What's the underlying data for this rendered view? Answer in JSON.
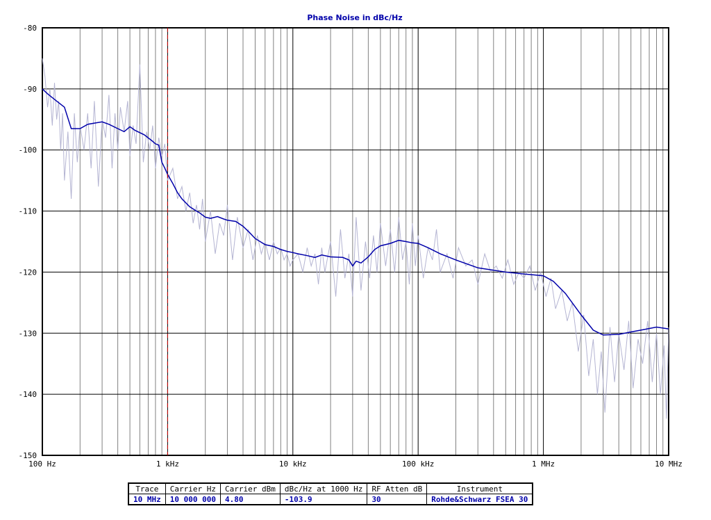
{
  "chart_data": {
    "type": "line",
    "title": "Phase Noise in dBc/Hz",
    "xlabel": "",
    "ylabel": "",
    "x_scale": "log",
    "xlim": [
      100,
      10000000
    ],
    "ylim": [
      -150,
      -80
    ],
    "grid": true,
    "x_tick_labels": [
      "100 Hz",
      "1 kHz",
      "10 kHz",
      "100 kHz",
      "1 MHz",
      "10 MHz"
    ],
    "y_ticks": [
      -80,
      -90,
      -100,
      -110,
      -120,
      -130,
      -140,
      -150
    ],
    "marker_line_x": 1000,
    "colors": {
      "smoothed": "#0000aa",
      "raw": "#b4b4d2",
      "marker": "#cc0000",
      "grid": "#000000",
      "minor_grid": "#808080"
    },
    "series": [
      {
        "kind": "smoothed",
        "x": [
          100,
          110,
          130,
          150,
          170,
          200,
          230,
          260,
          300,
          340,
          400,
          450,
          500,
          550,
          650,
          750,
          800,
          850,
          900,
          950,
          1000,
          1100,
          1200,
          1300,
          1500,
          1700,
          1800,
          2000,
          2200,
          2500,
          2800,
          3000,
          3500,
          4000,
          4500,
          5000,
          6000,
          7000,
          8000,
          9000,
          10000,
          11000,
          13000,
          15000,
          17000,
          20000,
          25000,
          28000,
          30000,
          32000,
          35000,
          40000,
          45000,
          50000,
          60000,
          70000,
          80000,
          90000,
          100000,
          120000,
          150000,
          200000,
          300000,
          500000,
          700000,
          1000000,
          1200000,
          1500000,
          2000000,
          2500000,
          3000000,
          4000000,
          5000000,
          6000000,
          8000000,
          10000000
        ],
        "y": [
          -90,
          -90.8,
          -92,
          -93,
          -96.5,
          -96.5,
          -95.8,
          -95.6,
          -95.4,
          -95.8,
          -96.5,
          -97,
          -96.2,
          -96.8,
          -97.5,
          -98.5,
          -99,
          -99.2,
          -102,
          -103,
          -104,
          -105.5,
          -107,
          -108,
          -109.3,
          -110,
          -110.3,
          -111,
          -111.2,
          -110.9,
          -111.3,
          -111.5,
          -111.7,
          -112.5,
          -113.5,
          -114.5,
          -115.5,
          -115.8,
          -116.3,
          -116.6,
          -116.8,
          -117,
          -117.3,
          -117.6,
          -117.2,
          -117.5,
          -117.6,
          -118,
          -119,
          -118.2,
          -118.5,
          -117.5,
          -116.3,
          -115.7,
          -115.3,
          -114.8,
          -115,
          -115.2,
          -115.3,
          -116,
          -117,
          -118,
          -119.3,
          -120,
          -120.3,
          -120.6,
          -121.5,
          -123.5,
          -127,
          -129.5,
          -130.3,
          -130.2,
          -129.8,
          -129.5,
          -129,
          -129.3
        ]
      },
      {
        "kind": "raw",
        "x": [
          100,
          105,
          110,
          115,
          120,
          125,
          130,
          135,
          140,
          145,
          150,
          160,
          170,
          180,
          190,
          200,
          215,
          230,
          245,
          260,
          280,
          300,
          320,
          340,
          360,
          380,
          400,
          420,
          450,
          480,
          500,
          530,
          560,
          600,
          640,
          680,
          720,
          760,
          800,
          850,
          900,
          950,
          1000,
          1100,
          1200,
          1300,
          1400,
          1500,
          1600,
          1700,
          1800,
          1900,
          2000,
          2200,
          2400,
          2600,
          2800,
          3000,
          3300,
          3600,
          4000,
          4400,
          4800,
          5200,
          5600,
          6000,
          6500,
          7000,
          7500,
          8000,
          8500,
          9000,
          9500,
          10000,
          11000,
          12000,
          13000,
          14000,
          15000,
          16000,
          17000,
          18000,
          20000,
          22000,
          24000,
          26000,
          28000,
          30000,
          32000,
          35000,
          38000,
          41000,
          44000,
          47000,
          50000,
          55000,
          60000,
          65000,
          70000,
          75000,
          80000,
          85000,
          90000,
          95000,
          100000,
          110000,
          120000,
          130000,
          140000,
          150000,
          170000,
          190000,
          210000,
          240000,
          270000,
          300000,
          340000,
          380000,
          420000,
          470000,
          520000,
          580000,
          640000,
          700000,
          780000,
          860000,
          950000,
          1050000,
          1150000,
          1250000,
          1400000,
          1550000,
          1700000,
          1900000,
          2100000,
          2300000,
          2500000,
          2700000,
          2900000,
          3100000,
          3400000,
          3700000,
          4000000,
          4400000,
          4800000,
          5200000,
          5700000,
          6200000,
          6800000,
          7400000,
          8000000,
          8600000,
          9200000,
          9600000,
          10000000
        ],
        "y": [
          -85,
          -88,
          -93,
          -90,
          -96,
          -89,
          -95,
          -92,
          -100,
          -94,
          -105,
          -97,
          -108,
          -94,
          -102,
          -96,
          -100,
          -94,
          -103,
          -92,
          -106,
          -95,
          -98,
          -91,
          -103,
          -94,
          -100,
          -93,
          -97,
          -92,
          -101,
          -96,
          -99,
          -86,
          -102,
          -97,
          -100,
          -96,
          -103,
          -98,
          -101,
          -99,
          -105,
          -103,
          -108,
          -106,
          -110,
          -107,
          -112,
          -109,
          -113,
          -108,
          -115,
          -110,
          -117,
          -112,
          -114,
          -109,
          -118,
          -111,
          -116,
          -113,
          -118,
          -114,
          -117,
          -115,
          -118,
          -115,
          -117,
          -116,
          -118,
          -117,
          -119,
          -118,
          -117,
          -120,
          -116,
          -119,
          -117,
          -122,
          -116,
          -120,
          -115,
          -124,
          -113,
          -121,
          -117,
          -124,
          -111,
          -123,
          -115,
          -121,
          -114,
          -120,
          -112,
          -119,
          -113,
          -120,
          -111,
          -118,
          -115,
          -122,
          -112,
          -119,
          -114,
          -121,
          -116,
          -118,
          -113,
          -120,
          -117,
          -121,
          -116,
          -119,
          -118,
          -122,
          -117,
          -120,
          -119,
          -121,
          -118,
          -122,
          -120,
          -121,
          -119,
          -123,
          -120,
          -124,
          -121,
          -126,
          -123,
          -128,
          -125,
          -133,
          -127,
          -137,
          -131,
          -140,
          -133,
          -143,
          -129,
          -138,
          -130,
          -136,
          -128,
          -139,
          -131,
          -135,
          -128,
          -138,
          -130,
          -140,
          -132,
          -144,
          -129
        ]
      }
    ]
  },
  "info_table": {
    "headers": [
      "Trace",
      "Carrier Hz",
      "Carrier dBm",
      "dBc/Hz at 1000 Hz",
      "RF Atten dB",
      "Instrument"
    ],
    "values": [
      "10 MHz",
      "10 000 000",
      "4.80",
      "-103.9",
      "30",
      "Rohde&Schwarz FSEA 30"
    ]
  }
}
